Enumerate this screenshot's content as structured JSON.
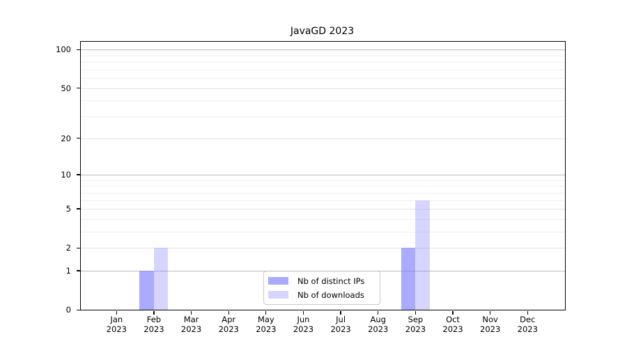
{
  "chart_data": {
    "type": "bar",
    "title": "JavaGD 2023",
    "x_axis": {
      "months": [
        "Jan",
        "Feb",
        "Mar",
        "Apr",
        "May",
        "Jun",
        "Jul",
        "Aug",
        "Sep",
        "Oct",
        "Nov",
        "Dec"
      ],
      "year": "2023"
    },
    "y_axis": {
      "scale": "log1p",
      "labeled_ticks": [
        0,
        1,
        2,
        5,
        10,
        20,
        50,
        100
      ],
      "emphasis_gridlines": [
        1,
        10,
        100
      ],
      "mid_gridlines": [
        2,
        5,
        20,
        50
      ],
      "minor_gridlines": [
        3,
        4,
        6,
        7,
        8,
        9,
        30,
        40,
        60,
        70,
        80,
        90
      ],
      "range_top_value": 115,
      "grid": "on"
    },
    "series": [
      {
        "name": "Nb of distinct IPs",
        "color": "rgba(128,128,255,0.67)",
        "values": [
          0,
          1,
          0,
          0,
          0,
          0,
          0,
          0,
          2,
          0,
          0,
          0
        ]
      },
      {
        "name": "Nb of downloads",
        "color": "rgba(128,128,255,0.33)",
        "values": [
          0,
          2,
          0,
          0,
          0,
          0,
          0,
          0,
          6,
          0,
          0,
          0
        ]
      }
    ],
    "legend_position": "bottom-center-inside",
    "colors": {
      "accent_base": "#8080ff",
      "grid_emphasis": "#b9b9b9",
      "grid_mid": "#e3e3e3",
      "grid_minor": "#efefef",
      "axis": "#000000",
      "legend_border": "#c9c9c9",
      "background": "#ffffff"
    }
  }
}
